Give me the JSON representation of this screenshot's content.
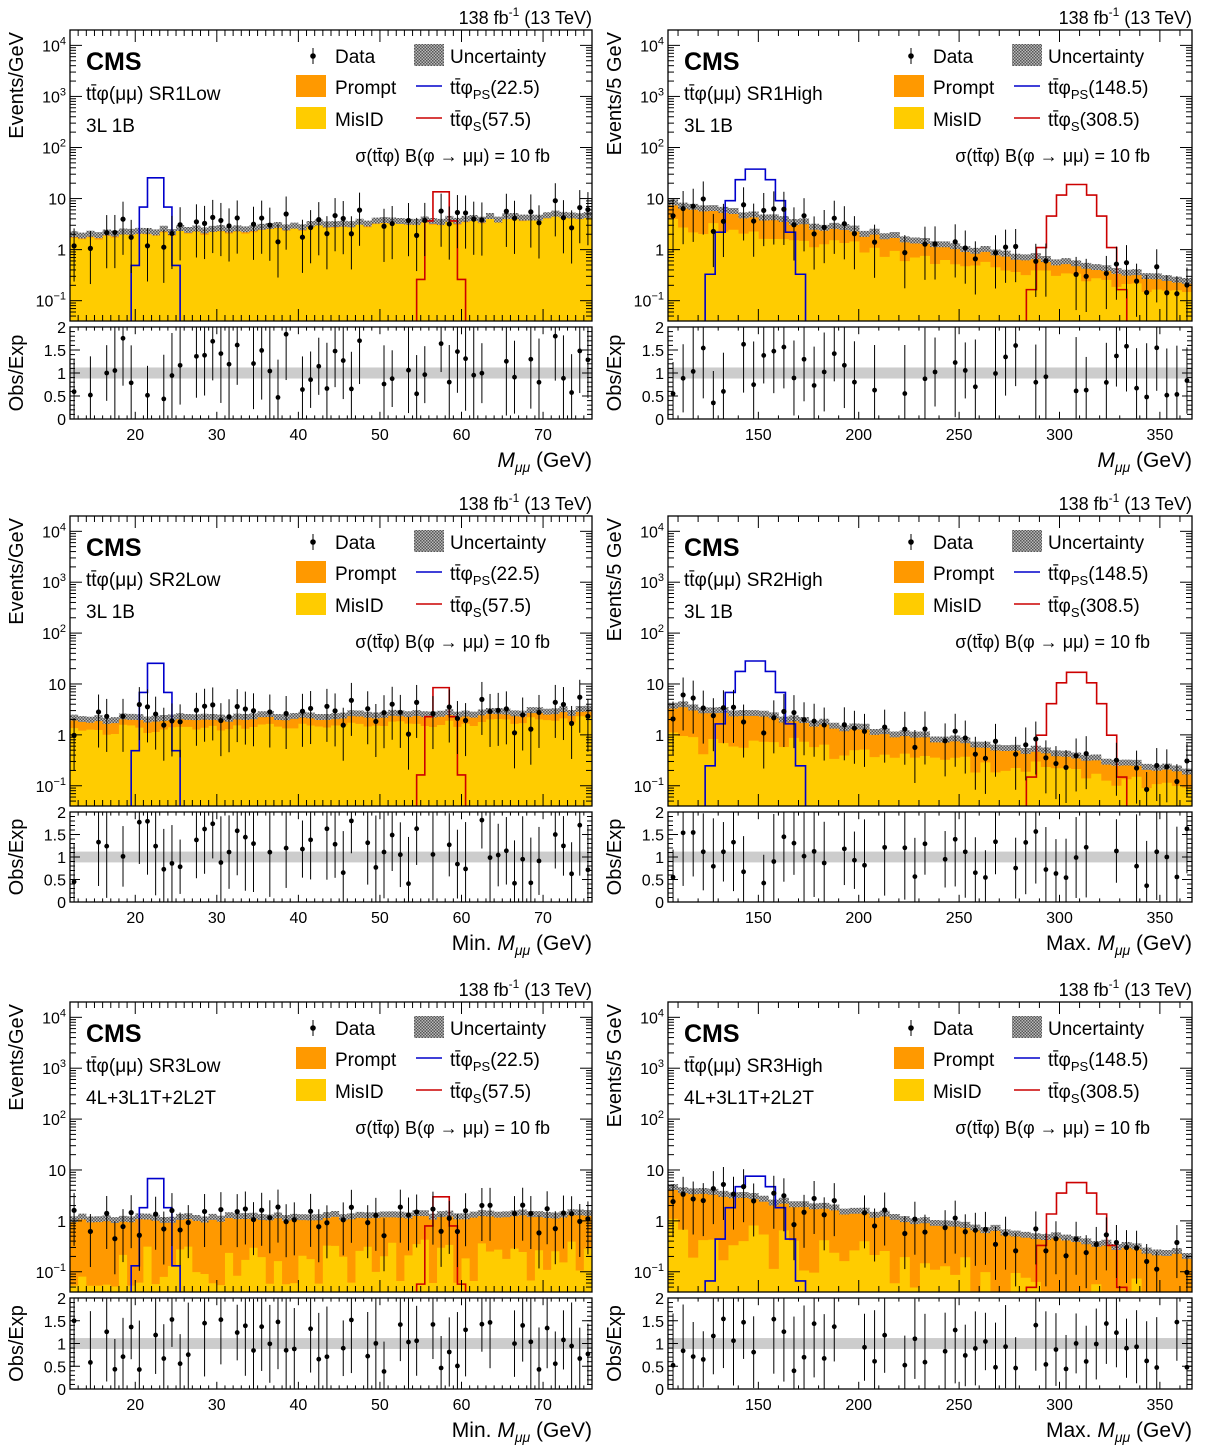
{
  "common": {
    "lumi_label": "138 fb",
    "lumi_sup": "-1",
    "energy_label": " (13 TeV)",
    "cms_label": "CMS",
    "ratio_ylabel": "Obs/Exp",
    "ratio_ticks": [
      "0",
      "0.5",
      "1",
      "1.5",
      "2"
    ],
    "log_ticks": [
      {
        "base": "10",
        "exp": "4"
      },
      {
        "base": "10",
        "exp": "3"
      },
      {
        "base": "10",
        "exp": "2"
      },
      {
        "base": "10",
        "exp": ""
      },
      {
        "base": "1",
        "exp": ""
      },
      {
        "base": "10",
        "exp": "−1"
      }
    ],
    "legend": {
      "data": "Data",
      "uncertainty": "Uncertainty",
      "prompt": "Prompt",
      "misid": "MisID",
      "ps_prefix": "tt̄φ",
      "ps_sub": "PS",
      "s_prefix": "tt̄φ",
      "s_sub": "S"
    },
    "xsec_label": "σ(tt̄φ) B(φ → μμ) = 10 fb",
    "colors": {
      "prompt": "#ff9900",
      "misid": "#ffcc00",
      "ps_signal": "#0000cc",
      "s_signal": "#cc0000",
      "uncertainty": "#888888",
      "ratio_band": "#cccccc"
    }
  },
  "chart_data": [
    {
      "type": "histogram",
      "region": "SR1Low",
      "channel_label": "tt̄φ(μμ) SR1Low",
      "selection_label": "3L 1B",
      "ylabel": "Events/GeV",
      "xlabel": "M_μμ (GeV)",
      "xlabel_prefix": "",
      "xlim": [
        12,
        76
      ],
      "xticks": [
        20,
        30,
        40,
        50,
        60,
        70
      ],
      "ylim_log": [
        0.04,
        20000
      ],
      "ps_mass": "22.5",
      "s_mass": "57.5",
      "signal_ps_peak": 30,
      "signal_s_peak": 16,
      "prompt_level": [
        0.3,
        0.6
      ],
      "total_level": [
        2.0,
        5.0
      ],
      "data_level": [
        2.5,
        5.0
      ]
    },
    {
      "type": "histogram",
      "region": "SR1High",
      "channel_label": "tt̄φ(μμ) SR1High",
      "selection_label": "3L 1B",
      "ylabel": "Events/5 GeV",
      "xlabel": "M_μμ (GeV)",
      "xlabel_prefix": "",
      "xlim": [
        105,
        366
      ],
      "xticks": [
        150,
        200,
        250,
        300,
        350
      ],
      "ylim_log": [
        0.04,
        20000
      ],
      "ps_mass": "148.5",
      "s_mass": "308.5",
      "signal_ps_peak": 40,
      "signal_s_peak": 20,
      "prompt_level": [
        5.0,
        0.1
      ],
      "total_level": [
        8.0,
        0.25
      ],
      "data_level": [
        8.0,
        0.5
      ]
    },
    {
      "type": "histogram",
      "region": "SR2Low",
      "channel_label": "tt̄φ(μμ) SR2Low",
      "selection_label": "3L 1B",
      "ylabel": "Events/GeV",
      "xlabel": "Min. M_μμ (GeV)",
      "xlabel_prefix": "Min. ",
      "xlim": [
        12,
        76
      ],
      "xticks": [
        20,
        30,
        40,
        50,
        60,
        70
      ],
      "ylim_log": [
        0.04,
        20000
      ],
      "ps_mass": "22.5",
      "s_mass": "57.5",
      "signal_ps_peak": 30,
      "signal_s_peak": 10,
      "prompt_level": [
        0.8,
        1.0
      ],
      "total_level": [
        2.0,
        3.0
      ],
      "data_level": [
        2.5,
        3.0
      ]
    },
    {
      "type": "histogram",
      "region": "SR2High",
      "channel_label": "tt̄φ(μμ) SR2High",
      "selection_label": "3L 1B",
      "ylabel": "Events/5 GeV",
      "xlabel": "Max. M_μμ (GeV)",
      "xlabel_prefix": "Max. ",
      "xlim": [
        105,
        366
      ],
      "xticks": [
        150,
        200,
        250,
        300,
        350
      ],
      "ylim_log": [
        0.04,
        20000
      ],
      "ps_mass": "148.5",
      "s_mass": "308.5",
      "signal_ps_peak": 30,
      "signal_s_peak": 18,
      "prompt_level": [
        3.0,
        0.1
      ],
      "total_level": [
        4.0,
        0.2
      ],
      "data_level": [
        4.0,
        0.5
      ]
    },
    {
      "type": "histogram",
      "region": "SR3Low",
      "channel_label": "tt̄φ(μμ) SR3Low",
      "selection_label": "4L+3L1T+2L2T",
      "ylabel": "Events/GeV",
      "xlabel": "Min. M_μμ (GeV)",
      "xlabel_prefix": "Min. ",
      "xlim": [
        12,
        76
      ],
      "xticks": [
        20,
        30,
        40,
        50,
        60,
        70
      ],
      "ylim_log": [
        0.04,
        20000
      ],
      "ps_mass": "22.5",
      "s_mass": "57.5",
      "signal_ps_peak": 8,
      "signal_s_peak": 3.5,
      "prompt_level": [
        1.0,
        1.2
      ],
      "total_level": [
        1.1,
        1.4
      ],
      "data_level": [
        1.0,
        1.0
      ]
    },
    {
      "type": "histogram",
      "region": "SR3High",
      "channel_label": "tt̄φ(μμ) SR3High",
      "selection_label": "4L+3L1T+2L2T",
      "ylabel": "Events/5 GeV",
      "xlabel": "Max. M_μμ (GeV)",
      "xlabel_prefix": "Max. ",
      "xlim": [
        105,
        366
      ],
      "xticks": [
        150,
        200,
        250,
        300,
        350
      ],
      "ylim_log": [
        0.04,
        20000
      ],
      "ps_mass": "148.5",
      "s_mass": "308.5",
      "signal_ps_peak": 8,
      "signal_s_peak": 6,
      "prompt_level": [
        4.0,
        0.2
      ],
      "total_level": [
        4.5,
        0.22
      ],
      "data_level": [
        4.0,
        0.5
      ]
    }
  ]
}
